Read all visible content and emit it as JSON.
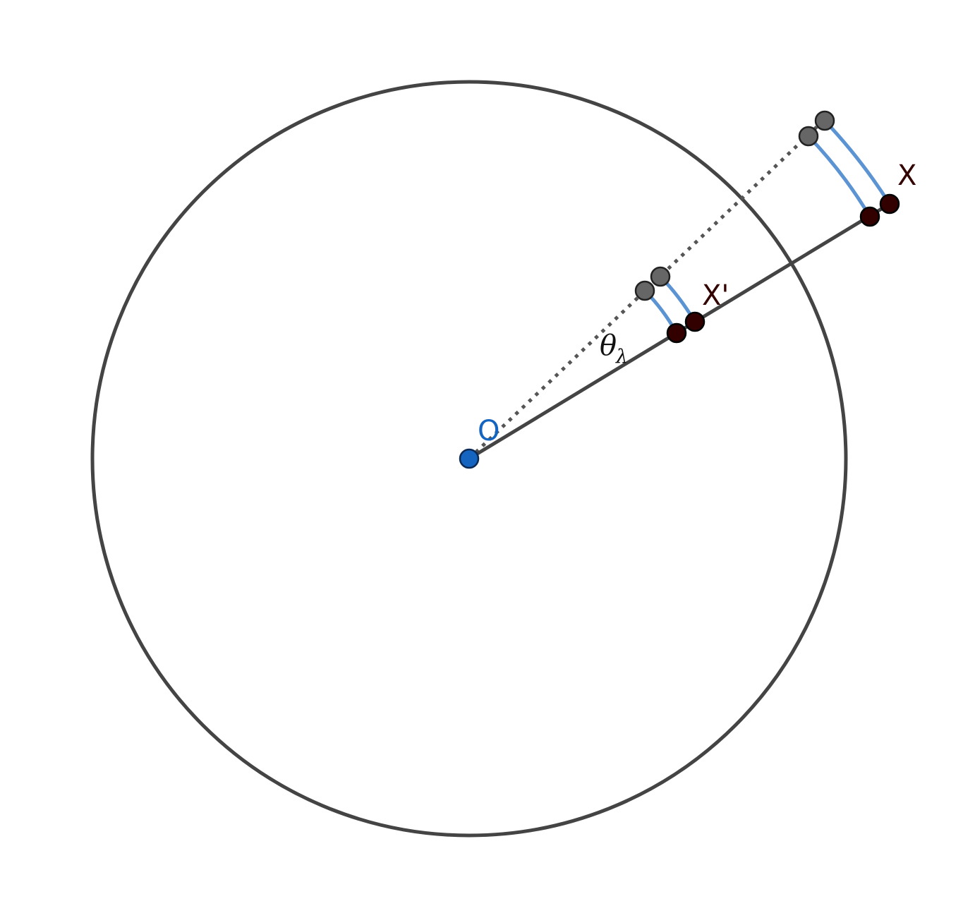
{
  "labels": {
    "origin": "O",
    "point_x": "X",
    "point_x_prime": "X'",
    "angle_symbol": "θ",
    "angle_subscript": "λ"
  },
  "colors": {
    "circle": "#444444",
    "ray": "#444444",
    "dotted_ray": "#555555",
    "arc": "#5b93d3",
    "origin_point": "#1565c0",
    "origin_label": "#1565c0",
    "dark_point": "#330000",
    "gray_point": "#666666",
    "text_dark": "#330000",
    "text_black": "#111111"
  }
}
